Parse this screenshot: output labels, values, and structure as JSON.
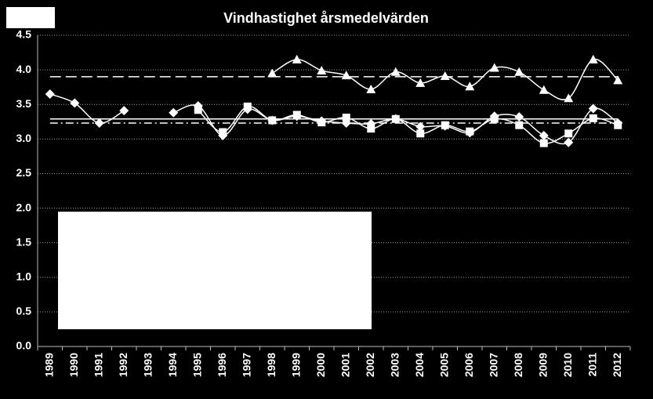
{
  "chart_data": {
    "type": "line",
    "title": "Vindhastighet årsmedelvärden",
    "categories": [
      "1989",
      "1990",
      "1991",
      "1992",
      "1993",
      "1994",
      "1995",
      "1996",
      "1997",
      "1998",
      "1999",
      "2000",
      "2001",
      "2002",
      "2003",
      "2004",
      "2005",
      "2006",
      "2007",
      "2008",
      "2009",
      "2010",
      "2011",
      "2012"
    ],
    "series": [
      {
        "color": "#ffffff",
        "marker": "diamond",
        "values": [
          3.65,
          3.52,
          3.23,
          3.41,
          null,
          3.38,
          3.48,
          3.05,
          3.43,
          3.27,
          3.33,
          3.26,
          3.23,
          3.22,
          3.29,
          3.18,
          3.19,
          3.09,
          3.33,
          3.32,
          3.05,
          2.95,
          3.44,
          3.23
        ]
      },
      {
        "color": "#ffffff",
        "marker": "square",
        "values": [
          null,
          null,
          null,
          null,
          null,
          null,
          3.42,
          3.1,
          3.47,
          3.27,
          3.35,
          3.24,
          3.31,
          3.15,
          3.29,
          3.08,
          3.2,
          3.11,
          3.29,
          3.2,
          2.94,
          3.08,
          3.3,
          3.2
        ]
      },
      {
        "color": "#ffffff",
        "marker": "triangle",
        "values": [
          null,
          null,
          null,
          null,
          null,
          null,
          null,
          null,
          null,
          3.95,
          4.15,
          3.99,
          3.92,
          3.72,
          3.97,
          3.81,
          3.91,
          3.76,
          4.03,
          3.97,
          3.71,
          3.59,
          4.15,
          3.85
        ]
      }
    ],
    "reference_lines": [
      {
        "value": 3.9,
        "style": "dashed"
      },
      {
        "value": 3.29,
        "style": "solid"
      },
      {
        "value": 3.23,
        "style": "dashdot"
      }
    ],
    "ylim": [
      0,
      4.5
    ],
    "yticks": [
      {
        "value": 0,
        "label": "0.0"
      },
      {
        "value": 0.5,
        "label": "0.5"
      },
      {
        "value": 1,
        "label": "1.0"
      },
      {
        "value": 1.5,
        "label": "1.5"
      },
      {
        "value": 2,
        "label": "2.0"
      },
      {
        "value": 2.5,
        "label": "2.5"
      },
      {
        "value": 3,
        "label": "3.0"
      },
      {
        "value": 3.5,
        "label": "3.5"
      },
      {
        "value": 4,
        "label": "4.0"
      },
      {
        "value": 4.5,
        "label": "4.5"
      }
    ],
    "grid": true
  }
}
